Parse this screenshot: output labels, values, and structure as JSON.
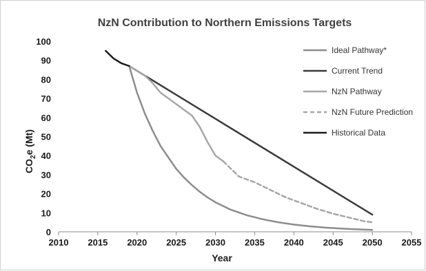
{
  "chart_data": {
    "type": "line",
    "title": "NzN Contribution to Northern Emissions  Targets",
    "xlabel": "Year",
    "ylabel_main": "CO",
    "ylabel_sub": "2",
    "ylabel_rest": "e (Mt)",
    "xlim": [
      2010,
      2055
    ],
    "ylim": [
      0,
      100
    ],
    "xticks": [
      "2010",
      "2015",
      "2020",
      "2025",
      "2030",
      "2035",
      "2040",
      "2045",
      "2050",
      "2055"
    ],
    "yticks": [
      "0",
      "10",
      "20",
      "30",
      "40",
      "50",
      "60",
      "70",
      "80",
      "90",
      "100"
    ],
    "grid": false,
    "legend_position": "right",
    "series": [
      {
        "name": "Ideal Pathway*",
        "color": "#8c8c8c",
        "dash": false,
        "points": [
          [
            2019,
            87
          ],
          [
            2020,
            73
          ],
          [
            2021,
            62
          ],
          [
            2022,
            53
          ],
          [
            2023,
            45
          ],
          [
            2024,
            39
          ],
          [
            2025,
            33
          ],
          [
            2026,
            28.5
          ],
          [
            2027,
            24.5
          ],
          [
            2028,
            21
          ],
          [
            2029,
            18
          ],
          [
            2030,
            15.5
          ],
          [
            2032,
            11.5
          ],
          [
            2034,
            8.7
          ],
          [
            2036,
            6.6
          ],
          [
            2038,
            5
          ],
          [
            2040,
            3.8
          ],
          [
            2042,
            2.9
          ],
          [
            2044,
            2.2
          ],
          [
            2046,
            1.7
          ],
          [
            2048,
            1.3
          ],
          [
            2050,
            1
          ]
        ]
      },
      {
        "name": "Current Trend",
        "color": "#3a3a3a",
        "dash": false,
        "points": [
          [
            2019,
            87
          ],
          [
            2050,
            9
          ]
        ]
      },
      {
        "name": "NzN Pathway",
        "color": "#a6a6a6",
        "dash": false,
        "points": [
          [
            2019,
            87
          ],
          [
            2021,
            82
          ],
          [
            2022,
            78
          ],
          [
            2023,
            73
          ],
          [
            2025,
            67
          ],
          [
            2027,
            61
          ],
          [
            2028,
            55
          ],
          [
            2029,
            47
          ],
          [
            2030,
            40
          ],
          [
            2031,
            37
          ]
        ]
      },
      {
        "name": "NzN Future Prediction",
        "color": "#a6a6a6",
        "dash": true,
        "points": [
          [
            2031,
            37
          ],
          [
            2033,
            29
          ],
          [
            2035,
            26
          ],
          [
            2037,
            22
          ],
          [
            2039,
            18
          ],
          [
            2041,
            15
          ],
          [
            2043,
            12
          ],
          [
            2045,
            9.5
          ],
          [
            2047,
            7.5
          ],
          [
            2049,
            5.5
          ],
          [
            2050,
            5
          ]
        ]
      },
      {
        "name": "Historical Data",
        "color": "#1a1a1a",
        "dash": false,
        "points": [
          [
            2016,
            95
          ],
          [
            2017,
            91
          ],
          [
            2018,
            88.5
          ],
          [
            2019,
            87
          ]
        ]
      }
    ]
  }
}
